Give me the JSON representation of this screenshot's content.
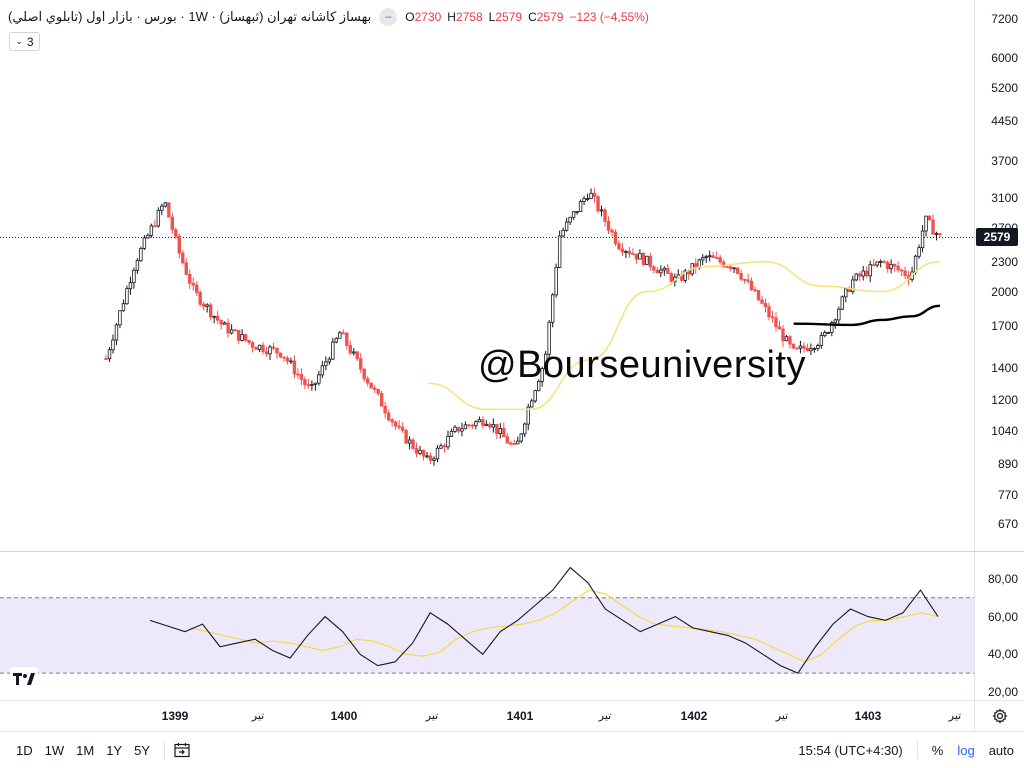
{
  "header": {
    "symbol_title": "بهساز کاشانه تهران (ثبهساز) · 1W · بورس · بازار اول (تابلوي اصلي)",
    "ohlc": [
      {
        "label": "O",
        "value": "2730"
      },
      {
        "label": "H",
        "value": "2758"
      },
      {
        "label": "L",
        "value": "2579"
      },
      {
        "label": "C",
        "value": "2579"
      }
    ],
    "change": "−123 (−4,55%)",
    "indicator_count": "3"
  },
  "watermark": "@Bourseuniversity",
  "price_axis": {
    "ticks": [
      "7200",
      "6000",
      "5200",
      "4450",
      "3700",
      "3100",
      "2700",
      "2300",
      "2000",
      "1700",
      "1400",
      "1200",
      "1040",
      "890",
      "770",
      "670"
    ],
    "last_price_tag": "2579"
  },
  "rsi_axis": {
    "ticks": [
      "80,00",
      "60,00",
      "40,00",
      "20,00"
    ]
  },
  "time_axis": {
    "ticks": [
      {
        "label": "1399",
        "type": "major"
      },
      {
        "label": "تیر",
        "type": "minor"
      },
      {
        "label": "1400",
        "type": "major"
      },
      {
        "label": "تیر",
        "type": "minor"
      },
      {
        "label": "1401",
        "type": "major"
      },
      {
        "label": "تیر",
        "type": "minor"
      },
      {
        "label": "1402",
        "type": "major"
      },
      {
        "label": "تیر",
        "type": "minor"
      },
      {
        "label": "1403",
        "type": "major"
      },
      {
        "label": "تیر",
        "type": "minor"
      }
    ]
  },
  "bottom_bar": {
    "ranges": [
      "1D",
      "1W",
      "1M",
      "1Y",
      "5Y"
    ],
    "clock": "15:54 (UTC+4:30)",
    "percent": "%",
    "log": "log",
    "auto": "auto"
  },
  "colors": {
    "up": "#131722",
    "down": "#ef5350",
    "ma_yellow": "#f7e27a",
    "ma_black": "#000000",
    "rsi_line": "#131722",
    "rsi_ma": "#f5d94a",
    "rsi_band": "#ede9fb"
  },
  "chart_data": [
    {
      "type": "candlestick",
      "title": "",
      "scale": "log",
      "ylim": [
        620,
        7500
      ],
      "last_close": 2579,
      "series": [
        {
          "name": "",
          "kind": "close",
          "x": [
            "1398-09",
            "1398-11",
            "1399-01",
            "1399-02",
            "1399-03",
            "1399-05",
            "1399-07",
            "1399-09",
            "1399-11",
            "1400-01",
            "1400-03",
            "1400-05",
            "1400-07",
            "1400-09",
            "1400-11",
            "1401-01",
            "1401-02",
            "1401-03",
            "1401-04",
            "1401-06",
            "1401-08",
            "1401-10",
            "1401-12",
            "1402-02",
            "1402-04",
            "1402-06",
            "1402-08",
            "1402-10",
            "1402-12",
            "1403-02",
            "1403-04",
            "1403-05",
            "1403-06"
          ],
          "values": [
            1460,
            2300,
            3050,
            2400,
            2000,
            1700,
            1560,
            1500,
            1250,
            1650,
            1300,
            1040,
            900,
            1050,
            1100,
            950,
            1200,
            1450,
            2600,
            3200,
            2500,
            2300,
            2100,
            2350,
            2250,
            1850,
            1500,
            1600,
            2100,
            2300,
            2150,
            2800,
            2579
          ]
        },
        {
          "name": "",
          "kind": "moving-average",
          "x": [
            "1400-07",
            "1400-11",
            "1401-02",
            "1401-06",
            "1401-10",
            "1402-02",
            "1402-06",
            "1402-10",
            "1403-02",
            "1403-06"
          ],
          "values": [
            1300,
            1150,
            1150,
            1450,
            2000,
            2250,
            2300,
            2050,
            2000,
            2300
          ]
        },
        {
          "name": "",
          "kind": "moving-average",
          "x": [
            "1402-08",
            "1402-12",
            "1403-02",
            "1403-04",
            "1403-06"
          ],
          "values": [
            1720,
            1710,
            1750,
            1780,
            1870
          ]
        }
      ]
    },
    {
      "type": "line",
      "title": "",
      "ylim": [
        20,
        90
      ],
      "bands": [
        30,
        70
      ],
      "series": [
        {
          "name": "",
          "kind": "oscillator",
          "values": [
            58,
            55,
            52,
            56,
            44,
            46,
            48,
            42,
            38,
            50,
            60,
            52,
            40,
            34,
            36,
            46,
            62,
            56,
            48,
            40,
            52,
            58,
            66,
            74,
            86,
            78,
            64,
            58,
            52,
            56,
            60,
            54,
            52,
            50,
            46,
            40,
            34,
            30,
            44,
            56,
            64,
            60,
            58,
            62,
            74,
            60
          ]
        },
        {
          "name": "",
          "kind": "moving-average",
          "values": [
            54,
            52,
            50,
            48,
            46,
            47,
            46,
            44,
            42,
            44,
            48,
            47,
            44,
            40,
            39,
            41,
            48,
            52,
            54,
            55,
            56,
            58,
            62,
            68,
            74,
            72,
            66,
            60,
            56,
            55,
            54,
            53,
            52,
            50,
            48,
            44,
            40,
            36,
            40,
            48,
            55,
            58,
            58,
            60,
            62,
            60
          ]
        }
      ]
    }
  ]
}
